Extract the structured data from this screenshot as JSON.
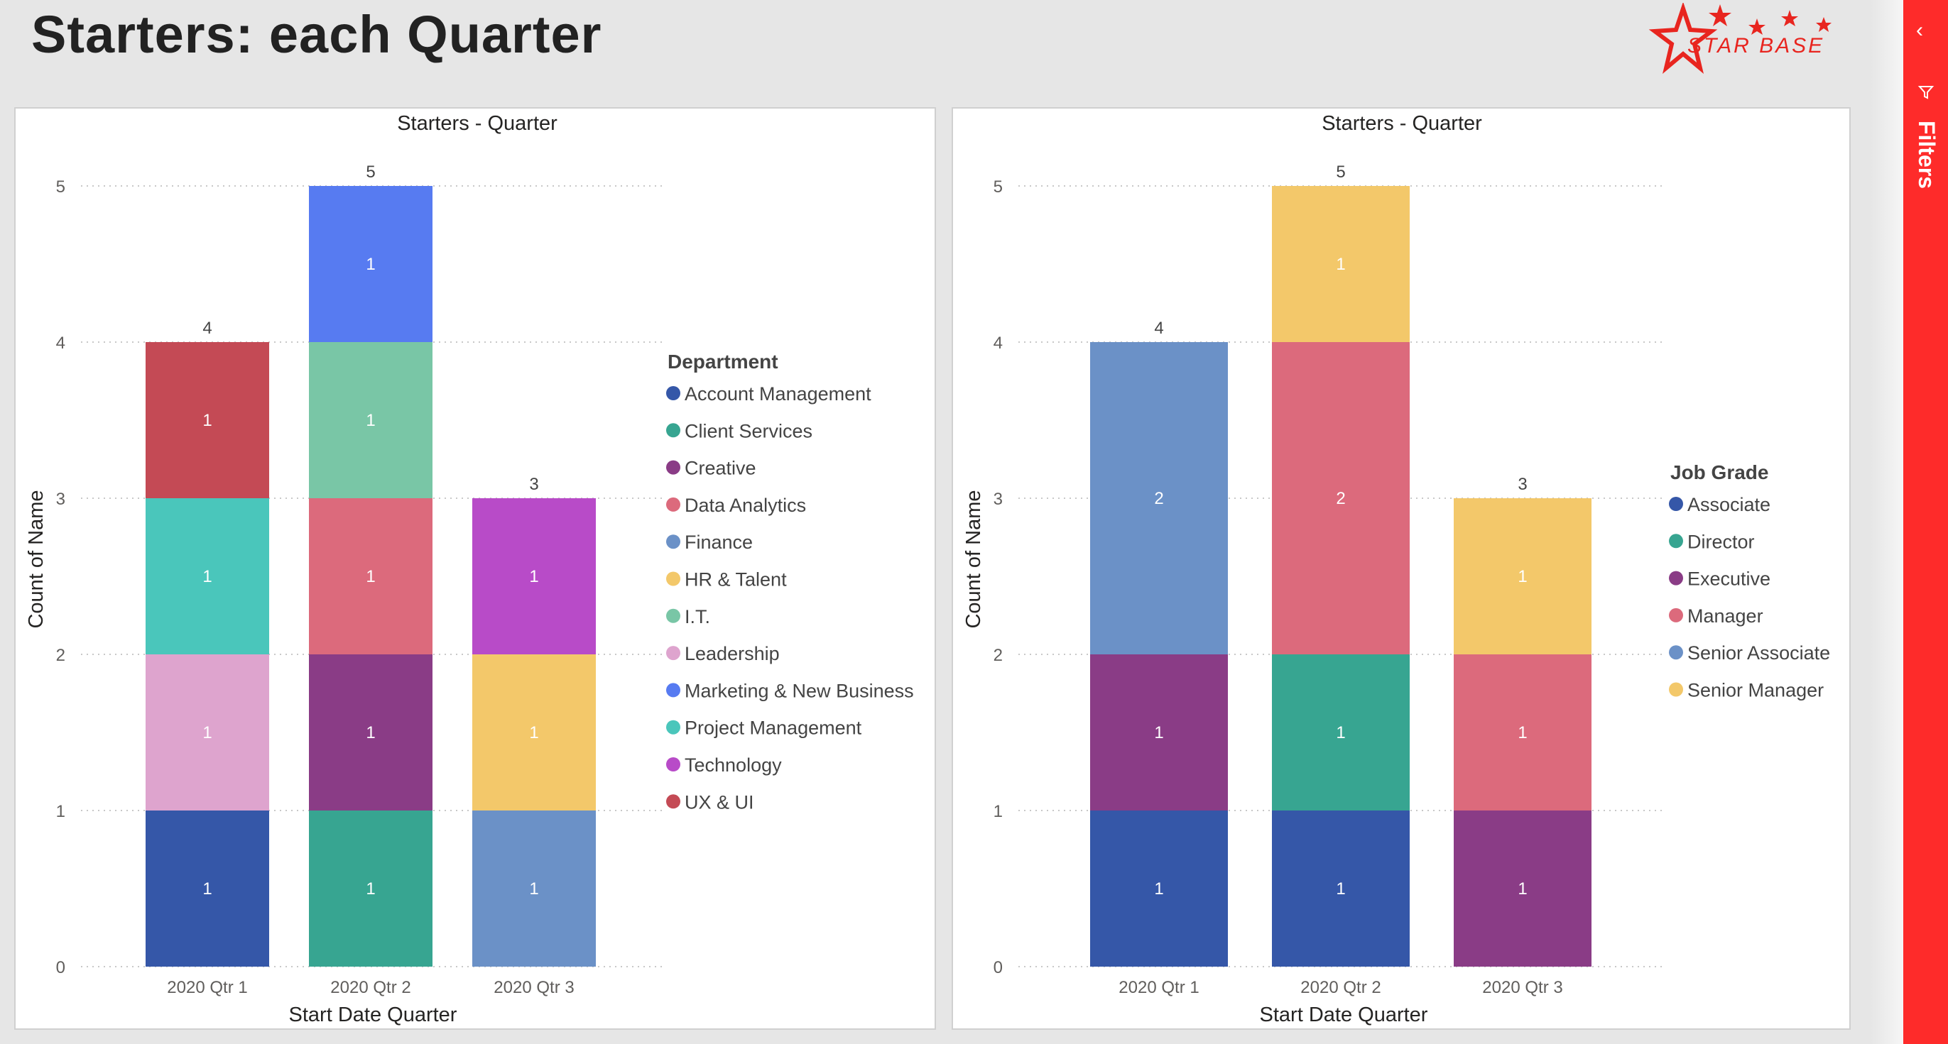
{
  "page": {
    "title": "Starters: each Quarter",
    "logo_text": "STAR BASE"
  },
  "filters": {
    "label": "Filters"
  },
  "chart_data": [
    {
      "type": "bar",
      "stacked": true,
      "title": "Starters - Quarter",
      "xlabel": "Start Date Quarter",
      "ylabel": "Count of Name",
      "ylim": [
        0,
        5
      ],
      "yticks": [
        0,
        1,
        2,
        3,
        4,
        5
      ],
      "grid": "horizontal dotted",
      "legend_title": "Department",
      "legend_position": "right",
      "categories": [
        "2020 Qtr 1",
        "2020 Qtr 2",
        "2020 Qtr 3"
      ],
      "totals": [
        4,
        5,
        3
      ],
      "series": [
        {
          "name": "Account Management",
          "color": "#3557a8",
          "values": [
            1,
            0,
            0
          ]
        },
        {
          "name": "Client Services",
          "color": "#37a591",
          "values": [
            0,
            1,
            0
          ]
        },
        {
          "name": "Creative",
          "color": "#8a3c86",
          "values": [
            0,
            1,
            0
          ]
        },
        {
          "name": "Data Analytics",
          "color": "#dc6a7c",
          "values": [
            0,
            1,
            0
          ]
        },
        {
          "name": "Finance",
          "color": "#6b91c7",
          "values": [
            0,
            0,
            1
          ]
        },
        {
          "name": "HR & Talent",
          "color": "#f3c86a",
          "values": [
            0,
            0,
            1
          ]
        },
        {
          "name": "I.T.",
          "color": "#79c6a6",
          "values": [
            0,
            1,
            0
          ]
        },
        {
          "name": "Leadership",
          "color": "#dea4ce",
          "values": [
            1,
            0,
            0
          ]
        },
        {
          "name": "Marketing & New Business",
          "color": "#577bf1",
          "values": [
            0,
            1,
            0
          ]
        },
        {
          "name": "Project Management",
          "color": "#4ac6bb",
          "values": [
            1,
            0,
            0
          ]
        },
        {
          "name": "Technology",
          "color": "#b84bc8",
          "values": [
            0,
            0,
            1
          ]
        },
        {
          "name": "UX & UI",
          "color": "#c44a55",
          "values": [
            1,
            0,
            0
          ]
        }
      ]
    },
    {
      "type": "bar",
      "stacked": true,
      "title": "Starters - Quarter",
      "xlabel": "Start Date Quarter",
      "ylabel": "Count of Name",
      "ylim": [
        0,
        5
      ],
      "yticks": [
        0,
        1,
        2,
        3,
        4,
        5
      ],
      "grid": "horizontal dotted",
      "legend_title": "Job Grade",
      "legend_position": "right",
      "categories": [
        "2020 Qtr 1",
        "2020 Qtr 2",
        "2020 Qtr 3"
      ],
      "totals": [
        4,
        5,
        3
      ],
      "series": [
        {
          "name": "Associate",
          "color": "#3557a8",
          "values": [
            1,
            1,
            0
          ]
        },
        {
          "name": "Director",
          "color": "#37a591",
          "values": [
            0,
            1,
            0
          ]
        },
        {
          "name": "Executive",
          "color": "#8a3c86",
          "values": [
            1,
            0,
            1
          ]
        },
        {
          "name": "Manager",
          "color": "#dc6a7c",
          "values": [
            0,
            2,
            1
          ]
        },
        {
          "name": "Senior Associate",
          "color": "#6b91c7",
          "values": [
            2,
            0,
            0
          ]
        },
        {
          "name": "Senior Manager",
          "color": "#f3c86a",
          "values": [
            0,
            1,
            1
          ]
        }
      ]
    }
  ]
}
